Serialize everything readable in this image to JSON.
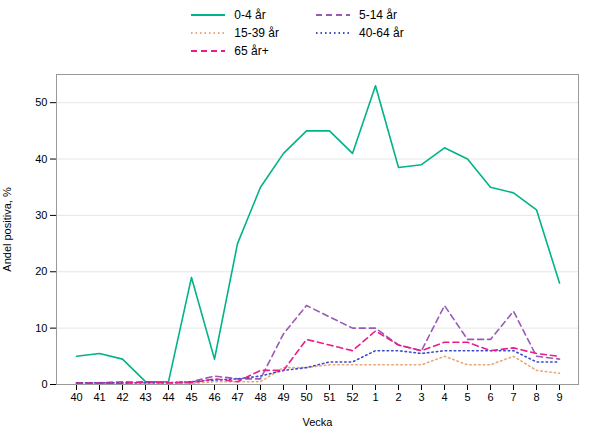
{
  "chart_data": {
    "type": "line",
    "xlabel": "Vecka",
    "ylabel": "Andel positiva, %",
    "categories": [
      "40",
      "41",
      "42",
      "43",
      "44",
      "45",
      "46",
      "47",
      "48",
      "49",
      "50",
      "51",
      "52",
      "1",
      "2",
      "3",
      "4",
      "5",
      "6",
      "7",
      "8",
      "9"
    ],
    "series": [
      {
        "name": "0-4 år",
        "color": "#00b388",
        "line_style": "solid",
        "values": [
          5,
          5.5,
          4.5,
          0.5,
          0.5,
          19,
          4.5,
          25,
          35,
          41,
          45,
          45,
          41,
          53,
          38.5,
          39,
          42,
          40,
          35,
          34,
          31,
          18
        ]
      },
      {
        "name": "5-14 år",
        "color": "#9b59b6",
        "line_style": "dashed",
        "values": [
          0.3,
          0.3,
          0.5,
          0.3,
          0.3,
          0.5,
          1.5,
          1,
          1,
          9,
          14,
          12,
          10,
          10,
          7,
          6,
          14,
          8,
          8,
          13,
          5,
          4.5
        ]
      },
      {
        "name": "15-39 år",
        "color": "#e8a87c",
        "line_style": "dotted",
        "values": [
          0.2,
          0.2,
          0.2,
          0.2,
          0.2,
          0.2,
          0.5,
          0.5,
          0.5,
          3,
          3,
          3.5,
          3.5,
          3.5,
          3.5,
          3.5,
          5,
          3.5,
          3.5,
          5,
          2.5,
          2
        ]
      },
      {
        "name": "40-64 år",
        "color": "#3c4bc9",
        "line_style": "dotted",
        "values": [
          0.3,
          0.3,
          0.3,
          0.3,
          0.3,
          0.5,
          0.8,
          1,
          1.5,
          2.5,
          3,
          4,
          4,
          6,
          6,
          5.5,
          6,
          6,
          6,
          6,
          4,
          4
        ]
      },
      {
        "name": "65 år+",
        "color": "#e91e8c",
        "line_style": "dashed",
        "values": [
          0.2,
          0.2,
          0.2,
          0.5,
          0.3,
          0.3,
          1,
          0.5,
          2.5,
          2.5,
          8,
          7,
          6,
          9.5,
          7,
          6,
          7.5,
          7.5,
          6,
          6.5,
          5.5,
          5
        ]
      }
    ],
    "ylim": [
      0,
      55
    ],
    "yticks": [
      0,
      10,
      20,
      30,
      40,
      50
    ],
    "grid": true,
    "legend": "top"
  }
}
